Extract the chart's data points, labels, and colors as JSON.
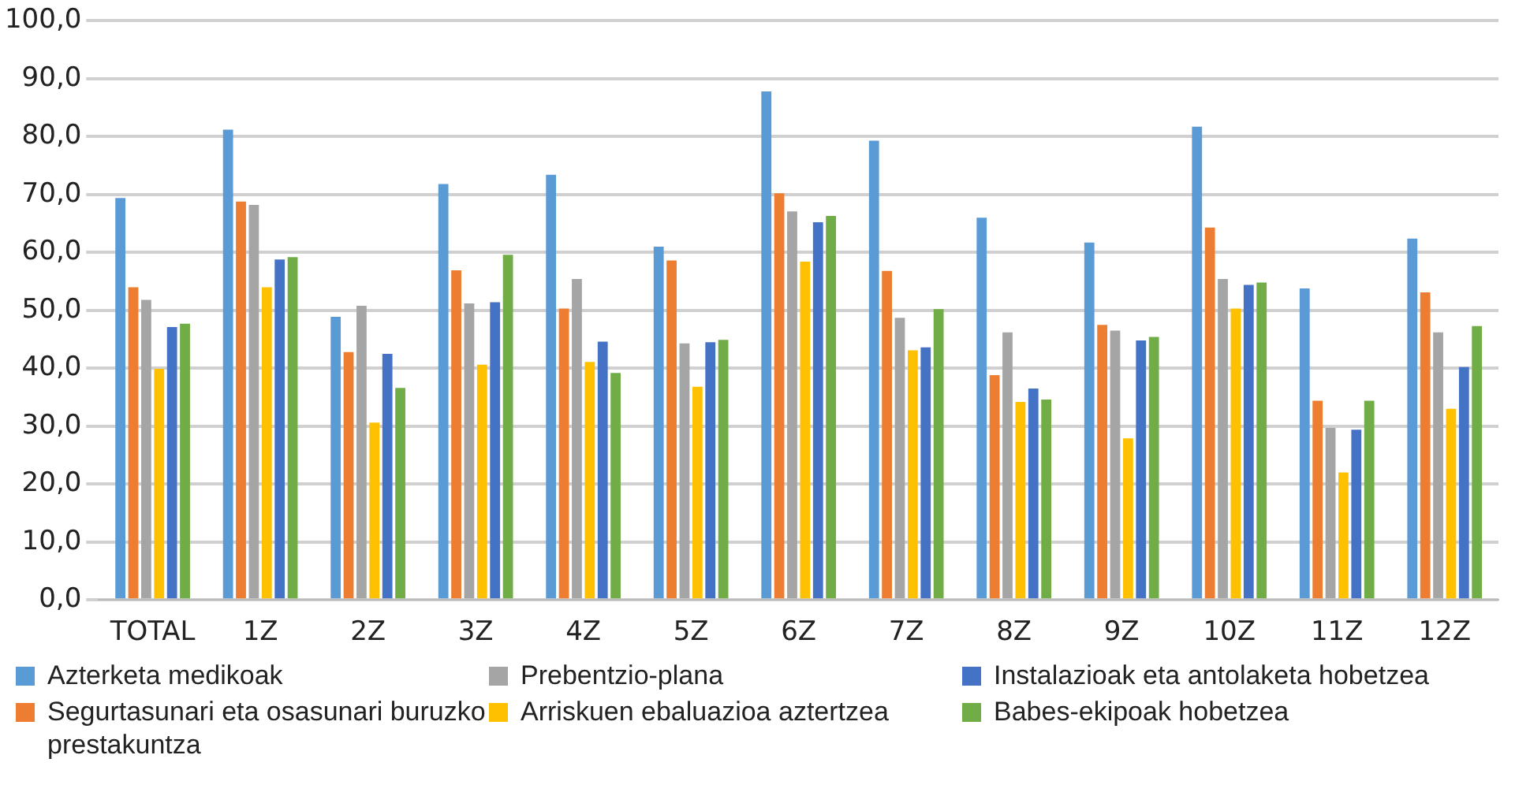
{
  "chart_data": {
    "type": "bar",
    "categories": [
      "TOTAL",
      "1Z",
      "2Z",
      "3Z",
      "4Z",
      "5Z",
      "6Z",
      "7Z",
      "8Z",
      "9Z",
      "10Z",
      "11Z",
      "12Z"
    ],
    "series": [
      {
        "name": "Azterketa medikoak",
        "color": "#5b9bd5",
        "values": [
          69.4,
          81.2,
          48.9,
          71.8,
          73.4,
          61,
          87.8,
          79.3,
          66,
          61.7,
          81.7,
          53.8,
          62.4
        ]
      },
      {
        "name": "Segurtasunari eta osasunari buruzko prestakuntza",
        "color": "#ed7d31",
        "values": [
          54,
          68.8,
          42.8,
          56.9,
          50.3,
          58.6,
          70.2,
          56.8,
          38.8,
          47.5,
          64.3,
          34.4,
          53.1
        ]
      },
      {
        "name": "Prebentzio-plana",
        "color": "#a5a5a5",
        "values": [
          51.8,
          68.2,
          50.8,
          51.2,
          55.4,
          44.3,
          67.1,
          48.7,
          46.2,
          46.5,
          55.4,
          29.7,
          46.2
        ]
      },
      {
        "name": "Arriskuen ebaluazioa aztertzea",
        "color": "#ffc000",
        "values": [
          39.9,
          54,
          30.6,
          40.6,
          41.1,
          36.8,
          58.4,
          43.1,
          34.2,
          27.9,
          50.3,
          22,
          33
        ]
      },
      {
        "name": "Instalazioak eta antolaketa hobetzea",
        "color": "#4472c4",
        "values": [
          47.1,
          58.8,
          42.5,
          51.4,
          44.6,
          44.5,
          65.2,
          43.6,
          36.5,
          44.8,
          54.4,
          29.4,
          40.2
        ]
      },
      {
        "name": "Babes-ekipoak hobetzea",
        "color": "#70ad47",
        "values": [
          47.7,
          59.2,
          36.6,
          59.6,
          39.2,
          44.9,
          66.3,
          50.2,
          34.6,
          45.4,
          54.8,
          34.4,
          47.3
        ]
      }
    ],
    "ylim": [
      0,
      100
    ],
    "yticks": [
      {
        "value": 0,
        "label": "0,0"
      },
      {
        "value": 10,
        "label": "10,0"
      },
      {
        "value": 20,
        "label": "20,0"
      },
      {
        "value": 30,
        "label": "30,0"
      },
      {
        "value": 40,
        "label": "40,0"
      },
      {
        "value": 50,
        "label": "50,0"
      },
      {
        "value": 60,
        "label": "60,0"
      },
      {
        "value": 70,
        "label": "70,0"
      },
      {
        "value": 80,
        "label": "80,0"
      },
      {
        "value": 90,
        "label": "90,0"
      },
      {
        "value": 100,
        "label": "100,0"
      }
    ],
    "grid": "y",
    "legend": "bottom"
  }
}
